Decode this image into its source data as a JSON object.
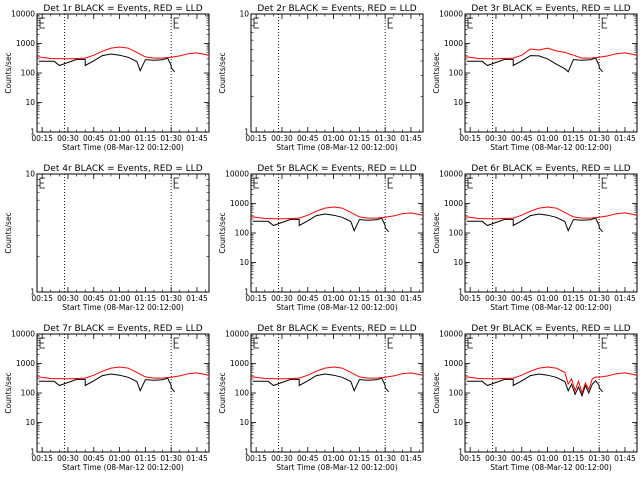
{
  "chart_data": [
    {
      "type": "line",
      "title": "Det 1r BLACK = Events, RED = LLD",
      "xlabel": "Start Time (08-Mar-12 00:12:00)",
      "ylabel": "Counts/sec",
      "yscale": "log",
      "ylim": [
        1,
        10000
      ],
      "ytick_labels": [
        "1",
        "10",
        "100",
        "1000",
        "10000"
      ],
      "xlim": [
        "00:12",
        "01:52"
      ],
      "xtick_labels": [
        "00:15",
        "00:30",
        "00:45",
        "01:00",
        "01:15",
        "01:30",
        "01:45"
      ],
      "markers": [
        "00:28",
        "01:30"
      ],
      "series": [
        {
          "color": "#000000",
          "x": [
            "00:13",
            "00:22",
            "00:25",
            "00:35",
            "00:40",
            "00:40",
            "00:45",
            "00:50",
            "00:55",
            "01:00",
            "01:05",
            "01:10",
            "01:12",
            "01:15",
            "01:20",
            "01:25",
            "01:28",
            "01:30",
            "01:30",
            "01:32"
          ],
          "y": [
            250,
            250,
            180,
            290,
            290,
            180,
            260,
            390,
            440,
            400,
            340,
            245,
            120,
            285,
            270,
            280,
            320,
            180,
            150,
            110
          ]
        },
        {
          "color": "#ff0000",
          "x": [
            "00:12",
            "00:20",
            "00:30",
            "00:40",
            "00:45",
            "00:50",
            "00:55",
            "01:00",
            "01:05",
            "01:10",
            "01:15",
            "01:20",
            "01:25",
            "01:30",
            "01:35",
            "01:40",
            "01:45",
            "01:52"
          ],
          "y": [
            360,
            310,
            300,
            320,
            400,
            550,
            700,
            760,
            700,
            500,
            350,
            320,
            320,
            340,
            380,
            450,
            480,
            400
          ]
        }
      ]
    },
    {
      "type": "line",
      "title": "Det 2r BLACK = Events, RED = LLD",
      "xlabel": "Start Time (08-Mar-12 00:12:00)",
      "ylabel": "Counts/sec",
      "yscale": "log",
      "ylim": [
        1,
        10
      ],
      "ytick_labels": [
        "1",
        "10"
      ],
      "xlim": [
        "00:12",
        "01:52"
      ],
      "xtick_labels": [
        "00:15",
        "00:30",
        "00:45",
        "01:00",
        "01:15",
        "01:30",
        "01:45"
      ],
      "markers": [
        "00:28",
        "01:30"
      ],
      "series": []
    },
    {
      "type": "line",
      "title": "Det 3r BLACK = Events, RED = LLD",
      "xlabel": "Start Time (08-Mar-12 00:12:00)",
      "ylabel": "Counts/sec",
      "yscale": "log",
      "ylim": [
        1,
        10000
      ],
      "ytick_labels": [
        "1",
        "10",
        "100",
        "1000",
        "10000"
      ],
      "xlim": [
        "00:12",
        "01:52"
      ],
      "xtick_labels": [
        "00:15",
        "00:30",
        "00:45",
        "01:00",
        "01:15",
        "01:30",
        "01:45"
      ],
      "markers": [
        "00:28",
        "01:30"
      ],
      "series": [
        {
          "color": "#000000",
          "x": [
            "00:13",
            "00:22",
            "00:25",
            "00:35",
            "00:40",
            "00:40",
            "00:45",
            "00:50",
            "00:55",
            "01:00",
            "01:05",
            "01:10",
            "01:12",
            "01:15",
            "01:20",
            "01:25",
            "01:28",
            "01:30",
            "01:30",
            "01:32"
          ],
          "y": [
            250,
            250,
            180,
            290,
            290,
            180,
            260,
            390,
            380,
            300,
            200,
            140,
            110,
            285,
            270,
            280,
            320,
            180,
            150,
            110
          ]
        },
        {
          "color": "#ff0000",
          "x": [
            "00:12",
            "00:20",
            "00:30",
            "00:40",
            "00:45",
            "00:50",
            "00:55",
            "01:00",
            "01:05",
            "01:10",
            "01:15",
            "01:20",
            "01:25",
            "01:30",
            "01:35",
            "01:40",
            "01:45",
            "01:52"
          ],
          "y": [
            360,
            310,
            300,
            320,
            400,
            650,
            600,
            700,
            560,
            500,
            400,
            320,
            320,
            340,
            380,
            450,
            480,
            400
          ]
        }
      ]
    },
    {
      "type": "line",
      "title": "Det 4r BLACK = Events, RED = LLD",
      "xlabel": "Start Time (08-Mar-12 00:12:00)",
      "ylabel": "Counts/sec",
      "yscale": "log",
      "ylim": [
        1,
        10
      ],
      "ytick_labels": [
        "1",
        "10"
      ],
      "xlim": [
        "00:12",
        "01:52"
      ],
      "xtick_labels": [
        "00:15",
        "00:30",
        "00:45",
        "01:00",
        "01:15",
        "01:30",
        "01:45"
      ],
      "markers": [
        "00:28",
        "01:30"
      ],
      "series": []
    },
    {
      "type": "line",
      "title": "Det 5r BLACK = Events, RED = LLD",
      "xlabel": "Start Time (08-Mar-12 00:12:00)",
      "ylabel": "Counts/sec",
      "yscale": "log",
      "ylim": [
        1,
        10000
      ],
      "ytick_labels": [
        "1",
        "10",
        "100",
        "1000",
        "10000"
      ],
      "xlim": [
        "00:12",
        "01:52"
      ],
      "xtick_labels": [
        "00:15",
        "00:30",
        "00:45",
        "01:00",
        "01:15",
        "01:30",
        "01:45"
      ],
      "markers": [
        "00:28",
        "01:30"
      ],
      "series": [
        {
          "color": "#000000",
          "x": [
            "00:13",
            "00:22",
            "00:25",
            "00:35",
            "00:40",
            "00:40",
            "00:45",
            "00:50",
            "00:55",
            "01:00",
            "01:05",
            "01:10",
            "01:12",
            "01:15",
            "01:20",
            "01:25",
            "01:28",
            "01:30",
            "01:30",
            "01:32"
          ],
          "y": [
            250,
            250,
            180,
            290,
            290,
            180,
            260,
            390,
            440,
            400,
            340,
            245,
            120,
            285,
            270,
            280,
            320,
            180,
            150,
            110
          ]
        },
        {
          "color": "#ff0000",
          "x": [
            "00:12",
            "00:20",
            "00:30",
            "00:40",
            "00:45",
            "00:50",
            "00:55",
            "01:00",
            "01:05",
            "01:10",
            "01:15",
            "01:20",
            "01:25",
            "01:30",
            "01:35",
            "01:40",
            "01:45",
            "01:52"
          ],
          "y": [
            360,
            310,
            300,
            320,
            400,
            550,
            700,
            760,
            700,
            500,
            350,
            320,
            320,
            340,
            380,
            450,
            480,
            400
          ]
        }
      ]
    },
    {
      "type": "line",
      "title": "Det 6r BLACK = Events, RED = LLD",
      "xlabel": "Start Time (08-Mar-12 00:12:00)",
      "ylabel": "Counts/sec",
      "yscale": "log",
      "ylim": [
        1,
        10000
      ],
      "ytick_labels": [
        "1",
        "10",
        "100",
        "1000",
        "10000"
      ],
      "xlim": [
        "00:12",
        "01:52"
      ],
      "xtick_labels": [
        "00:15",
        "00:30",
        "00:45",
        "01:00",
        "01:15",
        "01:30",
        "01:45"
      ],
      "markers": [
        "00:28",
        "01:30"
      ],
      "series": [
        {
          "color": "#000000",
          "x": [
            "00:13",
            "00:22",
            "00:25",
            "00:35",
            "00:40",
            "00:40",
            "00:45",
            "00:50",
            "00:55",
            "01:00",
            "01:05",
            "01:10",
            "01:12",
            "01:15",
            "01:20",
            "01:25",
            "01:28",
            "01:30",
            "01:30",
            "01:32"
          ],
          "y": [
            250,
            250,
            180,
            290,
            290,
            180,
            260,
            390,
            440,
            400,
            340,
            245,
            120,
            285,
            270,
            280,
            320,
            180,
            150,
            110
          ]
        },
        {
          "color": "#ff0000",
          "x": [
            "00:12",
            "00:20",
            "00:30",
            "00:40",
            "00:45",
            "00:50",
            "00:55",
            "01:00",
            "01:05",
            "01:10",
            "01:15",
            "01:20",
            "01:25",
            "01:30",
            "01:35",
            "01:40",
            "01:45",
            "01:52"
          ],
          "y": [
            360,
            310,
            300,
            320,
            400,
            550,
            700,
            760,
            700,
            500,
            350,
            320,
            320,
            340,
            380,
            450,
            480,
            400
          ]
        }
      ]
    },
    {
      "type": "line",
      "title": "Det 7r BLACK = Events, RED = LLD",
      "xlabel": "Start Time (08-Mar-12 00:12:00)",
      "ylabel": "Counts/sec",
      "yscale": "log",
      "ylim": [
        1,
        10000
      ],
      "ytick_labels": [
        "1",
        "10",
        "100",
        "1000",
        "10000"
      ],
      "xlim": [
        "00:12",
        "01:52"
      ],
      "xtick_labels": [
        "00:15",
        "00:30",
        "00:45",
        "01:00",
        "01:15",
        "01:30",
        "01:45"
      ],
      "markers": [
        "00:28",
        "01:30"
      ],
      "series": [
        {
          "color": "#000000",
          "x": [
            "00:13",
            "00:22",
            "00:25",
            "00:35",
            "00:40",
            "00:40",
            "00:45",
            "00:50",
            "00:55",
            "01:00",
            "01:05",
            "01:10",
            "01:12",
            "01:15",
            "01:20",
            "01:25",
            "01:28",
            "01:30",
            "01:30",
            "01:32"
          ],
          "y": [
            250,
            250,
            180,
            290,
            290,
            180,
            260,
            390,
            440,
            400,
            340,
            245,
            120,
            285,
            270,
            280,
            320,
            180,
            150,
            110
          ]
        },
        {
          "color": "#ff0000",
          "x": [
            "00:12",
            "00:20",
            "00:30",
            "00:40",
            "00:45",
            "00:50",
            "00:55",
            "01:00",
            "01:05",
            "01:10",
            "01:15",
            "01:20",
            "01:25",
            "01:30",
            "01:35",
            "01:40",
            "01:45",
            "01:52"
          ],
          "y": [
            360,
            310,
            300,
            320,
            400,
            550,
            700,
            760,
            700,
            500,
            350,
            320,
            320,
            340,
            380,
            450,
            480,
            400
          ]
        }
      ]
    },
    {
      "type": "line",
      "title": "Det 8r BLACK = Events, RED = LLD",
      "xlabel": "Start Time (08-Mar-12 00:12:00)",
      "ylabel": "Counts/sec",
      "yscale": "log",
      "ylim": [
        1,
        10000
      ],
      "ytick_labels": [
        "1",
        "10",
        "100",
        "1000",
        "10000"
      ],
      "xlim": [
        "00:12",
        "01:52"
      ],
      "xtick_labels": [
        "00:15",
        "00:30",
        "00:45",
        "01:00",
        "01:15",
        "01:30",
        "01:45"
      ],
      "markers": [
        "00:28",
        "01:30"
      ],
      "series": [
        {
          "color": "#000000",
          "x": [
            "00:13",
            "00:22",
            "00:25",
            "00:35",
            "00:40",
            "00:40",
            "00:45",
            "00:50",
            "00:55",
            "01:00",
            "01:05",
            "01:10",
            "01:12",
            "01:15",
            "01:20",
            "01:25",
            "01:28",
            "01:30",
            "01:30",
            "01:32"
          ],
          "y": [
            250,
            250,
            180,
            290,
            290,
            180,
            260,
            390,
            440,
            400,
            340,
            245,
            120,
            285,
            270,
            280,
            320,
            180,
            150,
            110
          ]
        },
        {
          "color": "#ff0000",
          "x": [
            "00:12",
            "00:20",
            "00:30",
            "00:40",
            "00:45",
            "00:50",
            "00:55",
            "01:00",
            "01:05",
            "01:10",
            "01:15",
            "01:20",
            "01:25",
            "01:30",
            "01:35",
            "01:40",
            "01:45",
            "01:52"
          ],
          "y": [
            360,
            310,
            300,
            320,
            400,
            550,
            700,
            760,
            700,
            500,
            350,
            320,
            320,
            340,
            380,
            450,
            480,
            400
          ]
        }
      ]
    },
    {
      "type": "line",
      "title": "Det 9r BLACK = Events, RED = LLD",
      "xlabel": "Start Time (08-Mar-12 00:12:00)",
      "ylabel": "Counts/sec",
      "yscale": "log",
      "ylim": [
        1,
        10000
      ],
      "ytick_labels": [
        "1",
        "10",
        "100",
        "1000",
        "10000"
      ],
      "xlim": [
        "00:12",
        "01:52"
      ],
      "xtick_labels": [
        "00:15",
        "00:30",
        "00:45",
        "01:00",
        "01:15",
        "01:30",
        "01:45"
      ],
      "markers": [
        "00:28",
        "01:30"
      ],
      "series": [
        {
          "color": "#000000",
          "x": [
            "00:13",
            "00:22",
            "00:25",
            "00:35",
            "00:40",
            "00:40",
            "00:45",
            "00:50",
            "00:55",
            "01:00",
            "01:05",
            "01:10",
            "01:12",
            "01:14",
            "01:16",
            "01:18",
            "01:20",
            "01:22",
            "01:24",
            "01:26",
            "01:28",
            "01:30",
            "01:30",
            "01:32"
          ],
          "y": [
            250,
            250,
            180,
            290,
            290,
            180,
            260,
            390,
            440,
            400,
            340,
            245,
            120,
            200,
            90,
            160,
            80,
            180,
            100,
            200,
            260,
            180,
            150,
            110
          ]
        },
        {
          "color": "#ff0000",
          "x": [
            "00:12",
            "00:20",
            "00:30",
            "00:40",
            "00:45",
            "00:50",
            "00:55",
            "01:00",
            "01:05",
            "01:10",
            "01:12",
            "01:14",
            "01:16",
            "01:18",
            "01:20",
            "01:22",
            "01:24",
            "01:26",
            "01:28",
            "01:30",
            "01:35",
            "01:40",
            "01:45",
            "01:52"
          ],
          "y": [
            360,
            310,
            300,
            320,
            400,
            550,
            700,
            760,
            700,
            500,
            200,
            300,
            120,
            250,
            100,
            220,
            130,
            300,
            350,
            340,
            380,
            450,
            480,
            400
          ]
        }
      ]
    }
  ]
}
